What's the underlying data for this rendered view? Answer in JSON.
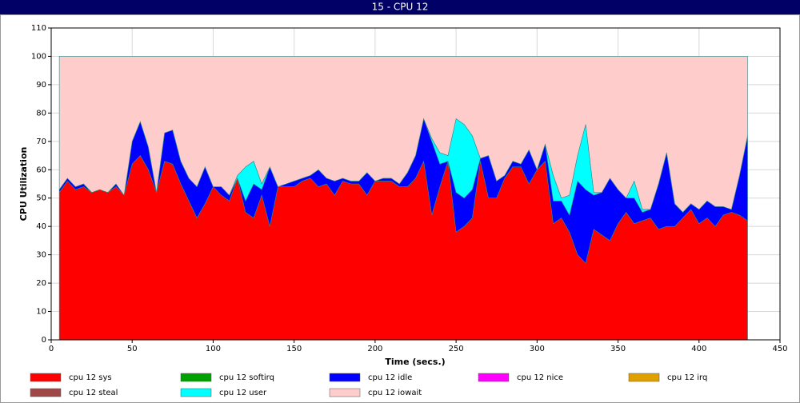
{
  "chart_data": {
    "type": "area",
    "title": "15 - CPU 12",
    "x_label": "Time (secs.)",
    "y_label": "CPU Utilization",
    "stacked": true,
    "grid": true,
    "xlim": [
      0,
      450
    ],
    "xticks": [
      0,
      50,
      100,
      150,
      200,
      250,
      300,
      350,
      400,
      450
    ],
    "ylim": [
      0,
      110
    ],
    "yticks": [
      0,
      10,
      20,
      30,
      40,
      50,
      60,
      70,
      80,
      90,
      100,
      110
    ],
    "x": [
      5,
      10,
      15,
      20,
      25,
      30,
      35,
      40,
      45,
      50,
      55,
      60,
      65,
      70,
      75,
      80,
      85,
      90,
      95,
      100,
      105,
      110,
      115,
      120,
      125,
      130,
      135,
      140,
      145,
      150,
      155,
      160,
      165,
      170,
      175,
      180,
      185,
      190,
      195,
      200,
      205,
      210,
      215,
      220,
      225,
      230,
      235,
      240,
      245,
      250,
      255,
      260,
      265,
      270,
      275,
      280,
      285,
      290,
      295,
      300,
      305,
      310,
      315,
      320,
      325,
      330,
      335,
      340,
      345,
      350,
      355,
      360,
      365,
      370,
      375,
      380,
      385,
      390,
      395,
      400,
      405,
      410,
      415,
      420,
      425,
      430
    ],
    "series": [
      {
        "name": "cpu 12 sys",
        "color": "#ff0000",
        "values": [
          52,
          56,
          53,
          54,
          52,
          53,
          52,
          54,
          51,
          62,
          65,
          60,
          52,
          63,
          62,
          55,
          49,
          43,
          48,
          54,
          51,
          49,
          57,
          45,
          43,
          51,
          40,
          54,
          54,
          54,
          56,
          57,
          54,
          55,
          51,
          56,
          55,
          55,
          51,
          56,
          56,
          56,
          54,
          54,
          57,
          63,
          44,
          54,
          63,
          38,
          40,
          43,
          63,
          50,
          50,
          57,
          61,
          61,
          55,
          60,
          63,
          41,
          43,
          38,
          30,
          27,
          39,
          37,
          35,
          41,
          45,
          41,
          42,
          43,
          39,
          40,
          40,
          43,
          46,
          41,
          43,
          40,
          44,
          45,
          44,
          42
        ]
      },
      {
        "name": "cpu 12 softirq",
        "color": "#00a000",
        "values": [
          0,
          0,
          0,
          0,
          0,
          0,
          0,
          0,
          0,
          0,
          0,
          0,
          0,
          0,
          0,
          0,
          0,
          0,
          0,
          0,
          0,
          0,
          0,
          0,
          0,
          0,
          0,
          0,
          0,
          0,
          0,
          0,
          0,
          0,
          0,
          0,
          0,
          0,
          0,
          0,
          0,
          0,
          0,
          0,
          0,
          0,
          0,
          0,
          0,
          0,
          0,
          0,
          0,
          0,
          0,
          0,
          0,
          0,
          0,
          0,
          0,
          0,
          0,
          0,
          0,
          0,
          0,
          0,
          0,
          0,
          0,
          0,
          0,
          0,
          0,
          0,
          0,
          0,
          0,
          0,
          0,
          0,
          0,
          0,
          0,
          0
        ]
      },
      {
        "name": "cpu 12 idle",
        "color": "#0000ff",
        "values": [
          1,
          1,
          1,
          1,
          0,
          0,
          0,
          1,
          0,
          8,
          12,
          8,
          0,
          10,
          12,
          8,
          8,
          11,
          13,
          0,
          3,
          2,
          0,
          4,
          12,
          2,
          21,
          0,
          1,
          2,
          1,
          1,
          6,
          2,
          5,
          1,
          1,
          1,
          8,
          0,
          1,
          1,
          1,
          5,
          8,
          15,
          26,
          8,
          0,
          14,
          10,
          10,
          1,
          15,
          6,
          1,
          2,
          1,
          12,
          0,
          6,
          8,
          6,
          6,
          26,
          26,
          12,
          15,
          22,
          12,
          5,
          9,
          3,
          3,
          16,
          26,
          8,
          2,
          2,
          5,
          6,
          7,
          3,
          1,
          14,
          30
        ]
      },
      {
        "name": "cpu 12 nice",
        "color": "#ff00ff",
        "values": [
          0,
          0,
          0,
          0,
          0,
          0,
          0,
          0,
          0,
          0,
          0,
          0,
          0,
          0,
          0,
          0,
          0,
          0,
          0,
          0,
          0,
          0,
          0,
          0,
          0,
          0,
          0,
          0,
          0,
          0,
          0,
          0,
          0,
          0,
          0,
          0,
          0,
          0,
          0,
          0,
          0,
          0,
          0,
          0,
          0,
          0,
          0,
          0,
          0,
          0,
          0,
          0,
          0,
          0,
          0,
          0,
          0,
          0,
          0,
          0,
          0,
          0,
          0,
          0,
          0,
          0,
          0,
          0,
          0,
          0,
          0,
          0,
          0,
          0,
          0,
          0,
          0,
          0,
          0,
          0,
          0,
          0,
          0,
          0,
          0,
          0
        ]
      },
      {
        "name": "cpu 12 irq",
        "color": "#e0a000",
        "values": [
          0,
          0,
          0,
          0,
          0,
          0,
          0,
          0,
          0,
          0,
          0,
          0,
          0,
          0,
          0,
          0,
          0,
          0,
          0,
          0,
          0,
          0,
          0,
          0,
          0,
          0,
          0,
          0,
          0,
          0,
          0,
          0,
          0,
          0,
          0,
          0,
          0,
          0,
          0,
          0,
          0,
          0,
          0,
          0,
          0,
          0,
          0,
          0,
          0,
          0,
          0,
          0,
          0,
          0,
          0,
          0,
          0,
          0,
          0,
          0,
          0,
          0,
          0,
          0,
          0,
          0,
          0,
          0,
          0,
          0,
          0,
          0,
          0,
          0,
          0,
          0,
          0,
          0,
          0,
          0,
          0,
          0,
          0,
          0,
          0,
          0
        ]
      },
      {
        "name": "cpu 12 steal",
        "color": "#a04848",
        "values": [
          0,
          0,
          0,
          0,
          0,
          0,
          0,
          0,
          0,
          0,
          0,
          0,
          0,
          0,
          0,
          0,
          0,
          0,
          0,
          0,
          0,
          0,
          0,
          0,
          0,
          0,
          0,
          0,
          0,
          0,
          0,
          0,
          0,
          0,
          0,
          0,
          0,
          0,
          0,
          0,
          0,
          0,
          0,
          0,
          0,
          0,
          0,
          0,
          0,
          0,
          0,
          0,
          0,
          0,
          0,
          0,
          0,
          0,
          0,
          0,
          0,
          0,
          0,
          0,
          0,
          0,
          0,
          0,
          0,
          0,
          0,
          0,
          0,
          0,
          0,
          0,
          0,
          0,
          0,
          0,
          0,
          0,
          0,
          0,
          0,
          0
        ]
      },
      {
        "name": "cpu 12 user",
        "color": "#00ffff",
        "values": [
          0,
          0,
          0,
          0,
          0,
          0,
          0,
          0,
          0,
          0,
          0,
          0,
          0,
          0,
          0,
          0,
          0,
          0,
          0,
          0,
          0,
          0,
          1,
          12,
          8,
          2,
          0,
          0,
          0,
          0,
          0,
          0,
          0,
          0,
          0,
          0,
          0,
          0,
          0,
          0,
          0,
          0,
          0,
          0,
          0,
          0,
          1,
          4,
          2,
          26,
          26,
          19,
          0,
          0,
          0,
          0,
          0,
          0,
          0,
          0,
          0,
          9,
          1,
          7,
          9,
          23,
          1,
          0,
          0,
          0,
          0,
          6,
          1,
          0,
          0,
          0,
          0,
          0,
          0,
          0,
          0,
          0,
          0,
          0,
          0,
          0
        ]
      },
      {
        "name": "cpu 12 iowait",
        "color": "#ffcccc",
        "values": [
          47,
          43,
          46,
          45,
          48,
          47,
          48,
          45,
          49,
          30,
          23,
          32,
          48,
          27,
          26,
          37,
          43,
          46,
          39,
          46,
          46,
          49,
          42,
          39,
          37,
          45,
          39,
          46,
          45,
          44,
          43,
          42,
          40,
          43,
          44,
          43,
          44,
          44,
          41,
          44,
          43,
          43,
          45,
          41,
          35,
          22,
          29,
          34,
          35,
          22,
          24,
          28,
          36,
          35,
          44,
          42,
          37,
          38,
          33,
          40,
          31,
          42,
          50,
          49,
          35,
          24,
          48,
          48,
          43,
          47,
          50,
          44,
          54,
          54,
          45,
          34,
          52,
          55,
          52,
          54,
          51,
          53,
          53,
          54,
          42,
          28
        ]
      }
    ]
  }
}
